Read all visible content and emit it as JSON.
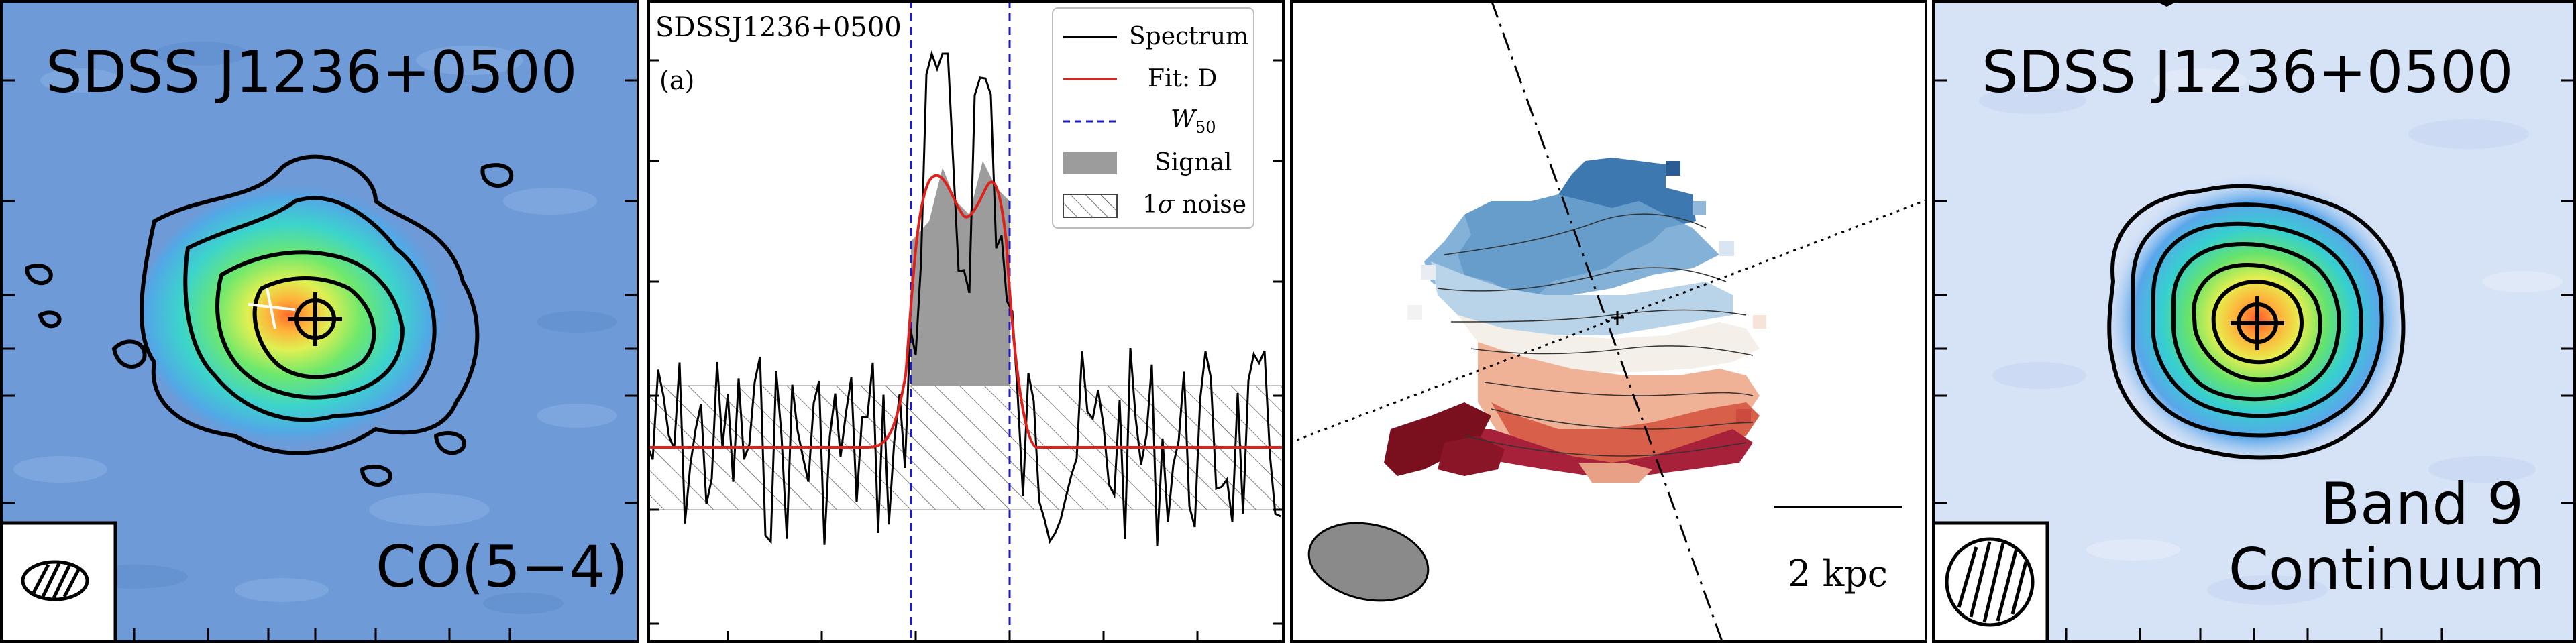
{
  "panel1": {
    "title": "SDSS J1236+0500",
    "line_label": "CO(5−4)",
    "map_colors": {
      "background": "#6e9ad8",
      "mid": "#3fd0c8",
      "green": "#7ee66a",
      "core": "#ff8a3a"
    }
  },
  "panel2": {
    "title": "SDSSJ1236+0500",
    "subpanel": "(a)",
    "legend": {
      "spectrum": "Spectrum",
      "fit": "Fit: D",
      "w50_main": "W",
      "w50_sub": "50",
      "signal": "Signal",
      "noise_prefix": "1",
      "noise_sigma": "σ",
      "noise_suffix": " noise"
    },
    "colors": {
      "spectrum": "#000000",
      "fit": "#e0201b",
      "w50": "#1a1acc",
      "signal": "#9c9c9c"
    }
  },
  "panel3": {
    "scalebar_label": "2 kpc",
    "colors": {
      "approaching": "#3e78b0",
      "receding": "#7a0f1e",
      "systemic": "#f4efe9",
      "beam": "#8a8a8a"
    }
  },
  "panel4": {
    "title": "SDSS J1236+0500",
    "band_label": "Band 9",
    "continuum_label": "Continuum",
    "map_colors": {
      "background": "#d6e2f6",
      "mid": "#3fd0c8",
      "green": "#7ee66a",
      "core": "#ff8a3a"
    }
  }
}
